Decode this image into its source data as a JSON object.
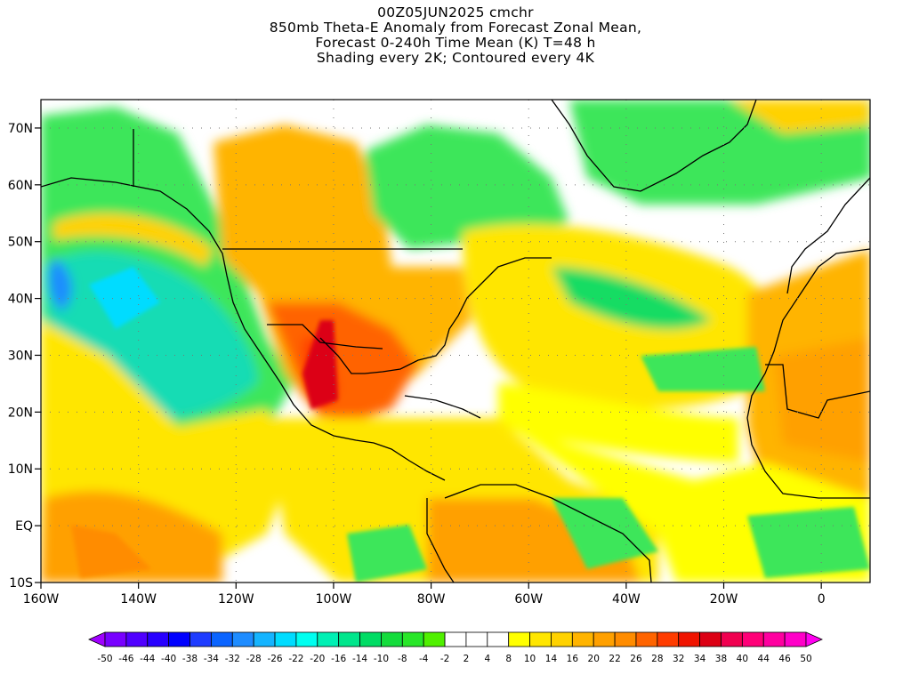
{
  "title_lines": [
    "00Z05JUN2025 cmchr",
    "850mb Theta-E Anomaly from Forecast Zonal Mean,",
    "Forecast 0-240h Time Mean (K) T=48 h",
    "Shading every 2K; Contoured every 4K"
  ],
  "map": {
    "lon_range": [
      -160,
      10
    ],
    "lat_range": [
      -10,
      75
    ],
    "lon_ticks": [
      {
        "value": -160,
        "label": "160W"
      },
      {
        "value": -140,
        "label": "140W"
      },
      {
        "value": -120,
        "label": "120W"
      },
      {
        "value": -100,
        "label": "100W"
      },
      {
        "value": -80,
        "label": "80W"
      },
      {
        "value": -60,
        "label": "60W"
      },
      {
        "value": -40,
        "label": "40W"
      },
      {
        "value": -20,
        "label": "20W"
      },
      {
        "value": 0,
        "label": "0"
      }
    ],
    "lat_ticks": [
      {
        "value": 70,
        "label": "70N"
      },
      {
        "value": 60,
        "label": "60N"
      },
      {
        "value": 50,
        "label": "50N"
      },
      {
        "value": 40,
        "label": "40N"
      },
      {
        "value": 30,
        "label": "30N"
      },
      {
        "value": 20,
        "label": "20N"
      },
      {
        "value": 10,
        "label": "10N"
      },
      {
        "value": 0,
        "label": "EQ"
      },
      {
        "value": -10,
        "label": "10S"
      }
    ]
  },
  "colorbar": {
    "labels": [
      "-50",
      "-46",
      "-44",
      "-40",
      "-38",
      "-34",
      "-32",
      "-28",
      "-26",
      "-22",
      "-20",
      "-16",
      "-14",
      "-10",
      "-8",
      "-4",
      "-2",
      "2",
      "4",
      "8",
      "10",
      "14",
      "16",
      "20",
      "22",
      "26",
      "28",
      "32",
      "34",
      "38",
      "40",
      "44",
      "46",
      "50"
    ],
    "colors": [
      "#a000ff",
      "#7800ff",
      "#5000ff",
      "#2800ff",
      "#0000ff",
      "#1e3cff",
      "#0a64ff",
      "#1e8cff",
      "#14b4ff",
      "#00dcff",
      "#00fff0",
      "#00f0b4",
      "#00e68c",
      "#00dc64",
      "#14dc3c",
      "#28e628",
      "#50f000",
      "#ffffff",
      "#ffffff",
      "#ffffff",
      "#ffff00",
      "#ffe600",
      "#ffd200",
      "#ffb400",
      "#ffa000",
      "#ff8c00",
      "#ff6400",
      "#ff3c00",
      "#f01400",
      "#dc0014",
      "#f00050",
      "#ff0078",
      "#ff00a0",
      "#ff00c8",
      "#ff00f0"
    ]
  }
}
